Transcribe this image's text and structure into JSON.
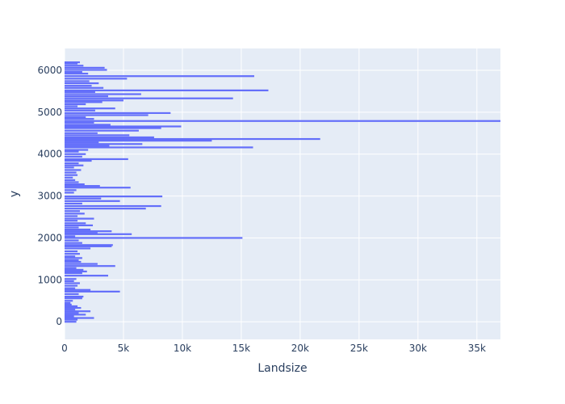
{
  "chart_data": {
    "type": "bar",
    "orientation": "horizontal",
    "title": "",
    "xlabel": "Landsize",
    "ylabel": "y",
    "xlim": [
      0,
      37000
    ],
    "ylim": [
      -420,
      6520
    ],
    "x_ticks": [
      {
        "value": 0,
        "label": "0"
      },
      {
        "value": 5000,
        "label": "5k"
      },
      {
        "value": 10000,
        "label": "10k"
      },
      {
        "value": 15000,
        "label": "15k"
      },
      {
        "value": 20000,
        "label": "20k"
      },
      {
        "value": 25000,
        "label": "25k"
      },
      {
        "value": 30000,
        "label": "30k"
      },
      {
        "value": 35000,
        "label": "35k"
      }
    ],
    "y_ticks": [
      {
        "value": 0,
        "label": "0"
      },
      {
        "value": 1000,
        "label": "1000"
      },
      {
        "value": 2000,
        "label": "2000"
      },
      {
        "value": 3000,
        "label": "3000"
      },
      {
        "value": 4000,
        "label": "4000"
      },
      {
        "value": 5000,
        "label": "5000"
      },
      {
        "value": 6000,
        "label": "6000"
      }
    ],
    "grid": true,
    "colors": {
      "bar": "#636efa",
      "plot_bg": "#e5ecf6",
      "grid": "#ffffff",
      "text": "#2a3f5f"
    },
    "bars": [
      {
        "y": 0,
        "x": 1000
      },
      {
        "y": 50,
        "x": 1100
      },
      {
        "y": 90,
        "x": 2500
      },
      {
        "y": 130,
        "x": 800
      },
      {
        "y": 170,
        "x": 1800
      },
      {
        "y": 210,
        "x": 1200
      },
      {
        "y": 250,
        "x": 2200
      },
      {
        "y": 290,
        "x": 900
      },
      {
        "y": 330,
        "x": 1400
      },
      {
        "y": 370,
        "x": 1100
      },
      {
        "y": 410,
        "x": 600
      },
      {
        "y": 450,
        "x": 500
      },
      {
        "y": 500,
        "x": 700
      },
      {
        "y": 560,
        "x": 1500
      },
      {
        "y": 600,
        "x": 1600
      },
      {
        "y": 660,
        "x": 1200
      },
      {
        "y": 720,
        "x": 4700
      },
      {
        "y": 760,
        "x": 2200
      },
      {
        "y": 800,
        "x": 900
      },
      {
        "y": 860,
        "x": 1100
      },
      {
        "y": 920,
        "x": 1300
      },
      {
        "y": 970,
        "x": 800
      },
      {
        "y": 1020,
        "x": 1000
      },
      {
        "y": 1100,
        "x": 3700
      },
      {
        "y": 1160,
        "x": 1500
      },
      {
        "y": 1200,
        "x": 1900
      },
      {
        "y": 1240,
        "x": 1600
      },
      {
        "y": 1280,
        "x": 1000
      },
      {
        "y": 1330,
        "x": 4300
      },
      {
        "y": 1380,
        "x": 2800
      },
      {
        "y": 1430,
        "x": 1400
      },
      {
        "y": 1470,
        "x": 1200
      },
      {
        "y": 1520,
        "x": 1500
      },
      {
        "y": 1560,
        "x": 900
      },
      {
        "y": 1620,
        "x": 1300
      },
      {
        "y": 1680,
        "x": 1100
      },
      {
        "y": 1750,
        "x": 2200
      },
      {
        "y": 1800,
        "x": 4000
      },
      {
        "y": 1830,
        "x": 4100
      },
      {
        "y": 1880,
        "x": 1500
      },
      {
        "y": 1940,
        "x": 1200
      },
      {
        "y": 2000,
        "x": 15100
      },
      {
        "y": 2040,
        "x": 900
      },
      {
        "y": 2090,
        "x": 5700
      },
      {
        "y": 2120,
        "x": 2800
      },
      {
        "y": 2160,
        "x": 4000
      },
      {
        "y": 2200,
        "x": 2200
      },
      {
        "y": 2250,
        "x": 1200
      },
      {
        "y": 2300,
        "x": 2400
      },
      {
        "y": 2350,
        "x": 1800
      },
      {
        "y": 2410,
        "x": 1100
      },
      {
        "y": 2460,
        "x": 2500
      },
      {
        "y": 2520,
        "x": 1100
      },
      {
        "y": 2580,
        "x": 1700
      },
      {
        "y": 2640,
        "x": 1300
      },
      {
        "y": 2700,
        "x": 6900
      },
      {
        "y": 2760,
        "x": 8200
      },
      {
        "y": 2820,
        "x": 1500
      },
      {
        "y": 2880,
        "x": 4700
      },
      {
        "y": 2940,
        "x": 3100
      },
      {
        "y": 2990,
        "x": 8300
      },
      {
        "y": 3080,
        "x": 800
      },
      {
        "y": 3140,
        "x": 1000
      },
      {
        "y": 3200,
        "x": 5600
      },
      {
        "y": 3240,
        "x": 3000
      },
      {
        "y": 3280,
        "x": 1700
      },
      {
        "y": 3330,
        "x": 1200
      },
      {
        "y": 3380,
        "x": 900
      },
      {
        "y": 3440,
        "x": 700
      },
      {
        "y": 3500,
        "x": 1100
      },
      {
        "y": 3560,
        "x": 1000
      },
      {
        "y": 3620,
        "x": 1400
      },
      {
        "y": 3680,
        "x": 800
      },
      {
        "y": 3730,
        "x": 1600
      },
      {
        "y": 3780,
        "x": 1200
      },
      {
        "y": 3840,
        "x": 2300
      },
      {
        "y": 3880,
        "x": 5400
      },
      {
        "y": 3940,
        "x": 1500
      },
      {
        "y": 4000,
        "x": 1800
      },
      {
        "y": 4060,
        "x": 1200
      },
      {
        "y": 4100,
        "x": 2000
      },
      {
        "y": 4160,
        "x": 16000
      },
      {
        "y": 4200,
        "x": 3800
      },
      {
        "y": 4240,
        "x": 6600
      },
      {
        "y": 4280,
        "x": 2900
      },
      {
        "y": 4320,
        "x": 12500
      },
      {
        "y": 4360,
        "x": 21700
      },
      {
        "y": 4400,
        "x": 7600
      },
      {
        "y": 4450,
        "x": 5500
      },
      {
        "y": 4500,
        "x": 2800
      },
      {
        "y": 4560,
        "x": 6300
      },
      {
        "y": 4620,
        "x": 8200
      },
      {
        "y": 4660,
        "x": 9900
      },
      {
        "y": 4700,
        "x": 3900
      },
      {
        "y": 4750,
        "x": 2500
      },
      {
        "y": 4790,
        "x": 37000
      },
      {
        "y": 4840,
        "x": 2500
      },
      {
        "y": 4880,
        "x": 1800
      },
      {
        "y": 4930,
        "x": 7100
      },
      {
        "y": 4980,
        "x": 9000
      },
      {
        "y": 5040,
        "x": 2600
      },
      {
        "y": 5090,
        "x": 4300
      },
      {
        "y": 5140,
        "x": 1100
      },
      {
        "y": 5190,
        "x": 1800
      },
      {
        "y": 5240,
        "x": 3200
      },
      {
        "y": 5280,
        "x": 5000
      },
      {
        "y": 5330,
        "x": 14300
      },
      {
        "y": 5380,
        "x": 3700
      },
      {
        "y": 5430,
        "x": 6500
      },
      {
        "y": 5480,
        "x": 2600
      },
      {
        "y": 5520,
        "x": 17300
      },
      {
        "y": 5580,
        "x": 3300
      },
      {
        "y": 5630,
        "x": 2300
      },
      {
        "y": 5690,
        "x": 2900
      },
      {
        "y": 5740,
        "x": 2100
      },
      {
        "y": 5800,
        "x": 5300
      },
      {
        "y": 5860,
        "x": 16100
      },
      {
        "y": 5920,
        "x": 2000
      },
      {
        "y": 5960,
        "x": 1500
      },
      {
        "y": 6010,
        "x": 3600
      },
      {
        "y": 6060,
        "x": 3400
      },
      {
        "y": 6110,
        "x": 1600
      },
      {
        "y": 6160,
        "x": 1100
      },
      {
        "y": 6190,
        "x": 1300
      }
    ]
  }
}
